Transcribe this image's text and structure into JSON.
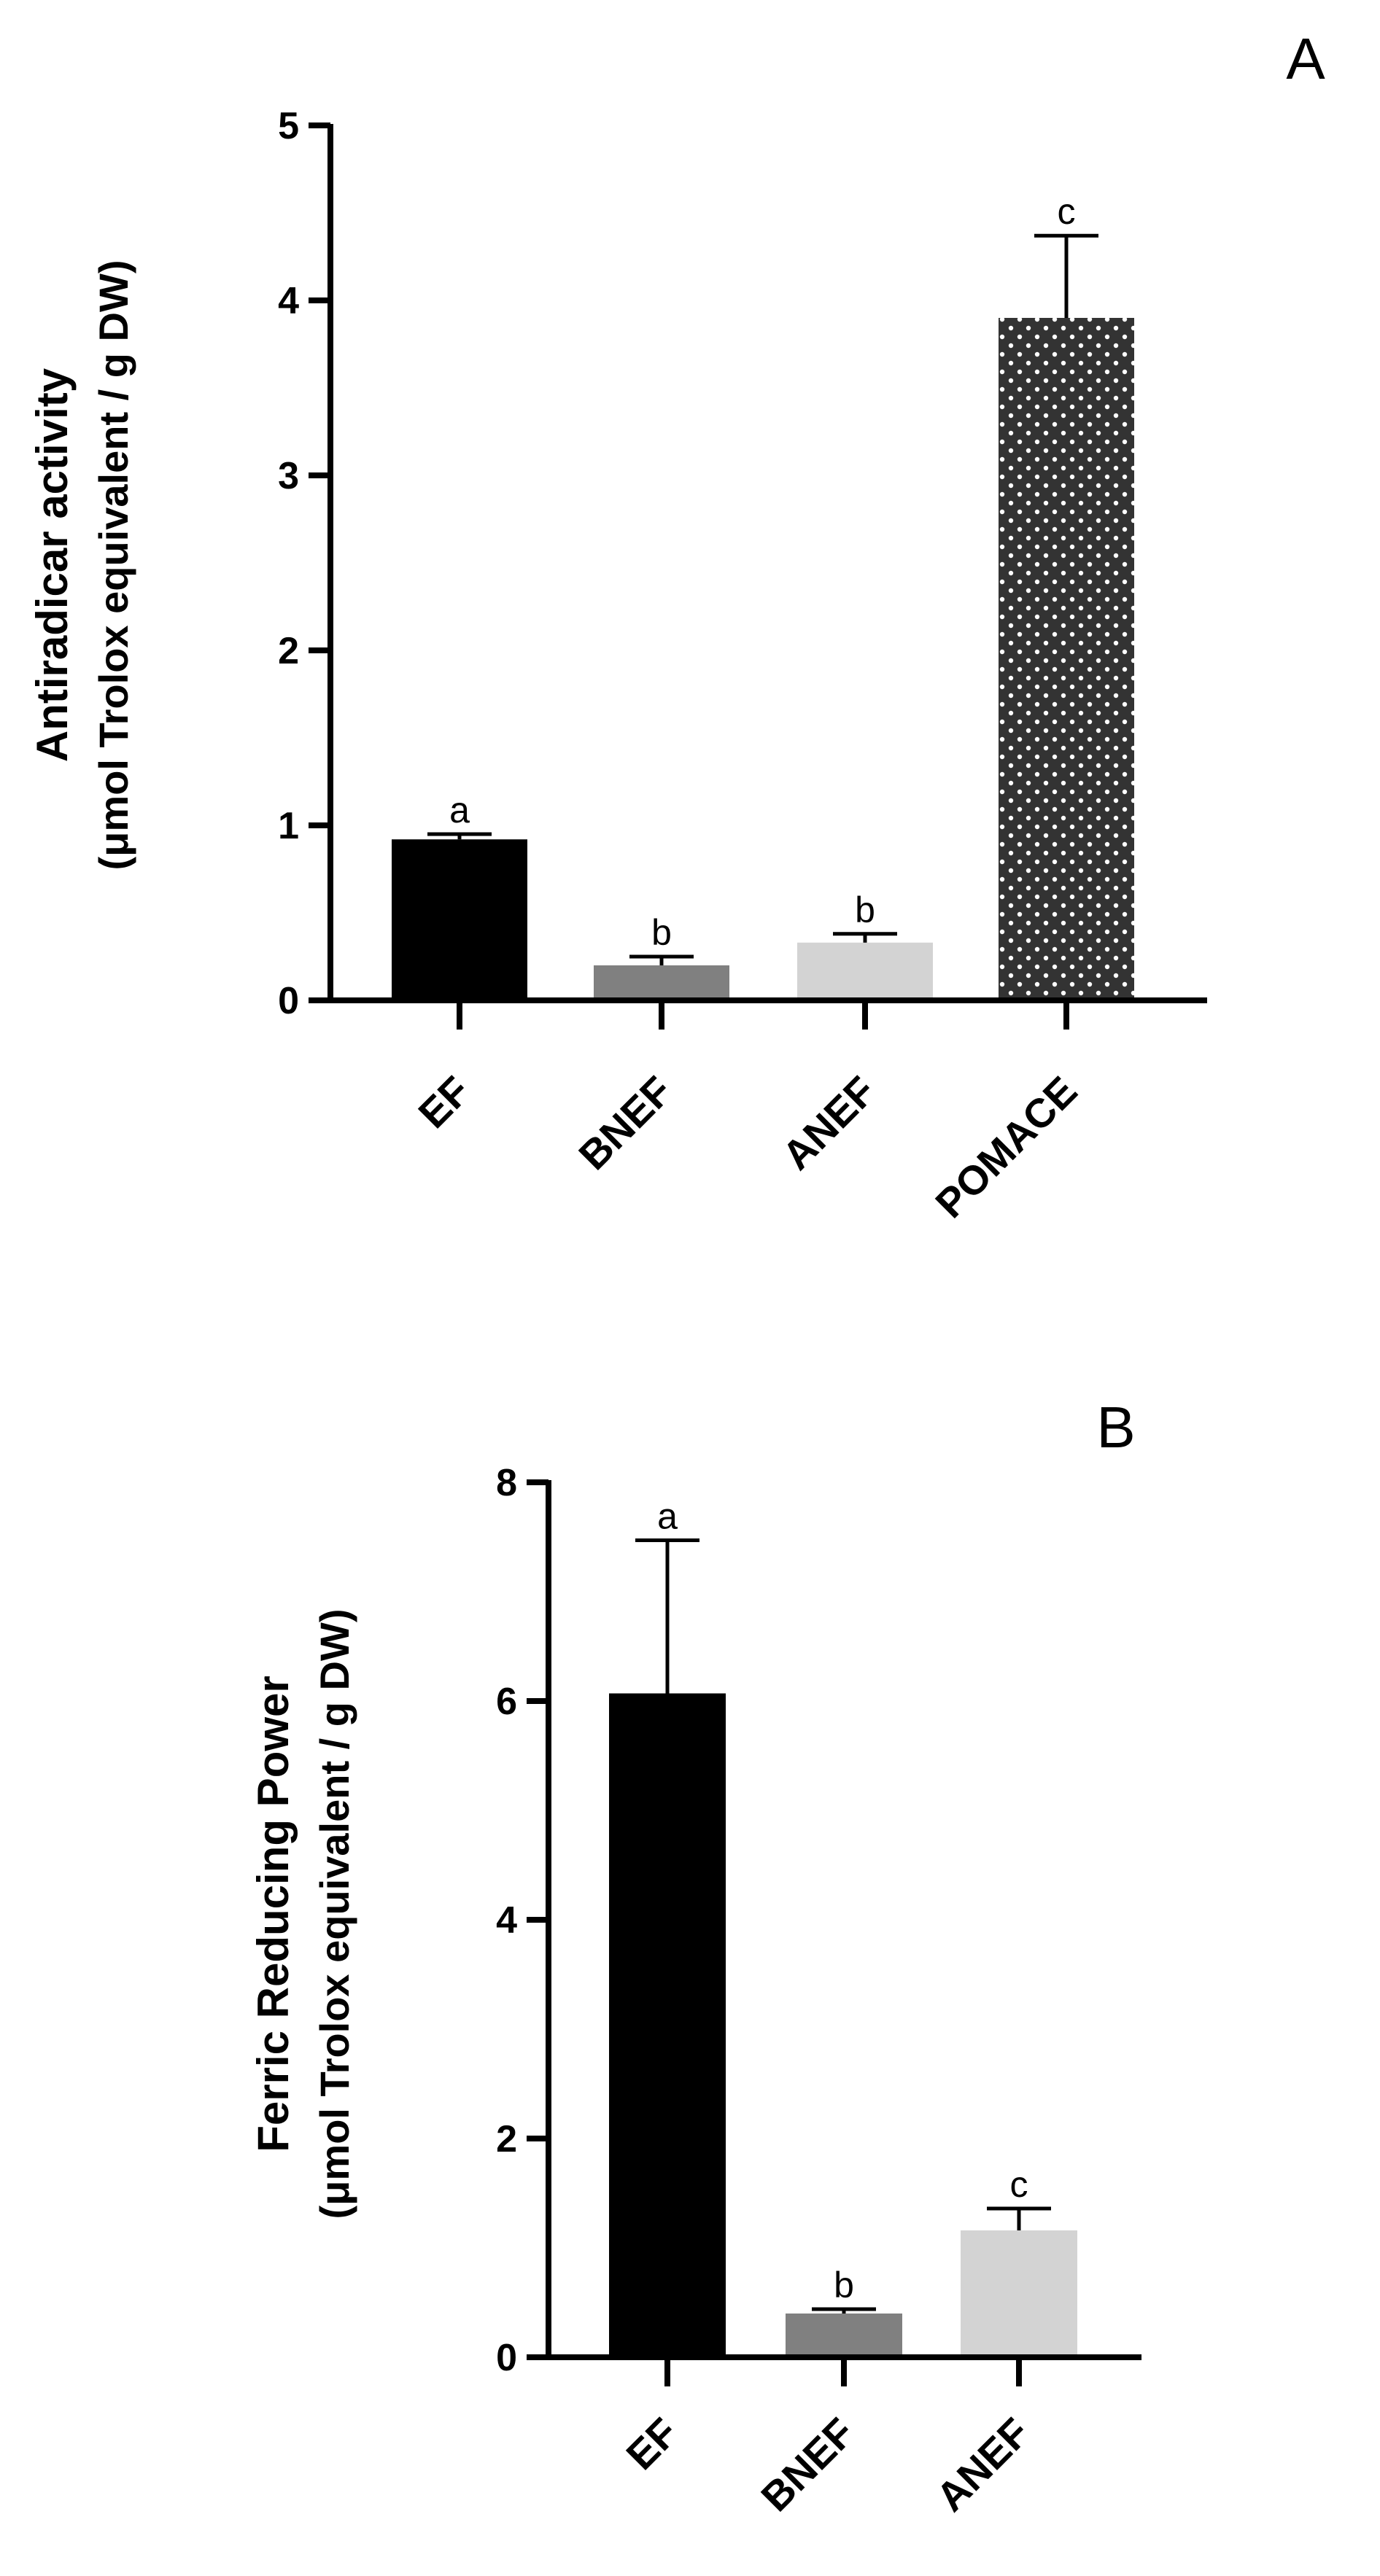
{
  "chart_data": [
    {
      "type": "bar",
      "panel_label": "A",
      "categories": [
        "EF",
        "BNEF",
        "ANEF",
        "POMACE"
      ],
      "values": [
        0.92,
        0.2,
        0.33,
        3.9
      ],
      "errors": [
        0.03,
        0.05,
        0.05,
        0.47
      ],
      "significance": [
        "a",
        "b",
        "b",
        "c"
      ],
      "bar_colors": [
        "#000000",
        "#808080",
        "#d3d3d3",
        "#333333"
      ],
      "bar_patterns": [
        "solid",
        "solid",
        "solid",
        "dots"
      ],
      "ylabel": "Antiradicar activity",
      "ylabel_units": "(μmol Trolox equivalent / g DW)",
      "ylim": [
        0,
        5
      ],
      "yticks": [
        "0",
        "1",
        "2",
        "3",
        "4",
        "5"
      ],
      "grid": false,
      "legend": "none"
    },
    {
      "type": "bar",
      "panel_label": "B",
      "categories": [
        "EF",
        "BNEF",
        "ANEF"
      ],
      "values": [
        6.07,
        0.4,
        1.16
      ],
      "errors": [
        1.4,
        0.04,
        0.2
      ],
      "significance": [
        "a",
        "b",
        "c"
      ],
      "bar_colors": [
        "#000000",
        "#808080",
        "#d3d3d3"
      ],
      "bar_patterns": [
        "solid",
        "solid",
        "solid"
      ],
      "ylabel": "Ferric Reducing Power",
      "ylabel_units": "(μmol Trolox equivalent / g DW)",
      "ylim": [
        0,
        8
      ],
      "yticks": [
        "0",
        "2",
        "4",
        "6",
        "8"
      ],
      "grid": false,
      "legend": "none"
    }
  ]
}
